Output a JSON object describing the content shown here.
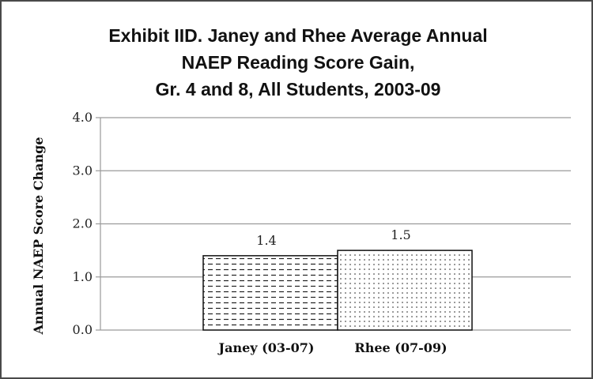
{
  "chart_data": {
    "type": "bar",
    "title_lines": [
      "Exhibit IID. Janey and Rhee Average Annual",
      "NAEP Reading Score Gain,",
      "Gr. 4 and 8, All Students, 2003-09"
    ],
    "categories": [
      "Janey (03-07)",
      "Rhee (07-09)"
    ],
    "values": [
      1.4,
      1.5
    ],
    "data_labels": [
      "1.4",
      "1.5"
    ],
    "xlabel": "",
    "ylabel": "Annual NAEP Score Change",
    "ylim": [
      0,
      4
    ],
    "yticks": [
      0,
      1,
      2,
      3,
      4
    ],
    "ytick_labels": [
      "0.0",
      "1.0",
      "2.0",
      "3.0",
      "4.0"
    ],
    "grid": true,
    "legend": "none",
    "bar_patterns": [
      "dashes",
      "dots"
    ],
    "colors": {
      "bar_fill": "#ffffff",
      "bar_stroke": "#111111",
      "grid": "#9a9a9a",
      "pattern": "#222222"
    }
  }
}
